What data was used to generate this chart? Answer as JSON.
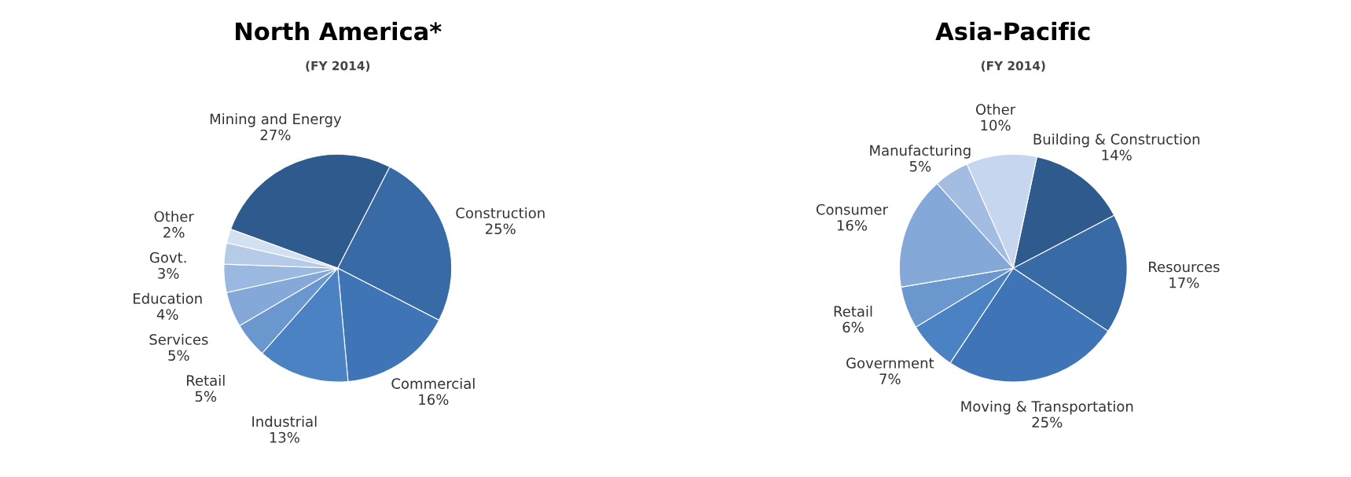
{
  "chart_data": [
    {
      "type": "pie",
      "title": "North America*",
      "subtitle": "(FY 2014)",
      "legend": false,
      "categories": [
        "Mining and Energy",
        "Construction",
        "Commercial",
        "Industrial",
        "Retail",
        "Services",
        "Education",
        "Govt.",
        "Other"
      ],
      "values": [
        27,
        25,
        16,
        13,
        5,
        5,
        4,
        3,
        2
      ],
      "value_labels": [
        "27%",
        "25%",
        "16%",
        "13%",
        "5%",
        "5%",
        "4%",
        "3%",
        "2%"
      ],
      "colors": [
        "#2e5a8e",
        "#386aa6",
        "#3f74b6",
        "#4a82c4",
        "#6b97cf",
        "#84a8d8",
        "#9ab8e0",
        "#b5cbe8",
        "#d3e0f2"
      ]
    },
    {
      "type": "pie",
      "title": "Asia-Pacific",
      "subtitle": "(FY 2014)",
      "legend": false,
      "categories": [
        "Building & Construction",
        "Resources",
        "Moving & Transportation",
        "Government",
        "Retail",
        "Consumer",
        "Manufacturing",
        "Other"
      ],
      "values": [
        14,
        17,
        25,
        7,
        6,
        16,
        5,
        10
      ],
      "value_labels": [
        "14%",
        "17%",
        "25%",
        "7%",
        "6%",
        "16%",
        "5%",
        "10%"
      ],
      "colors": [
        "#2e5a8e",
        "#386aa6",
        "#3f74b6",
        "#4a82c4",
        "#6b97cf",
        "#84a8d8",
        "#a3bde2",
        "#c6d6ee"
      ]
    }
  ]
}
